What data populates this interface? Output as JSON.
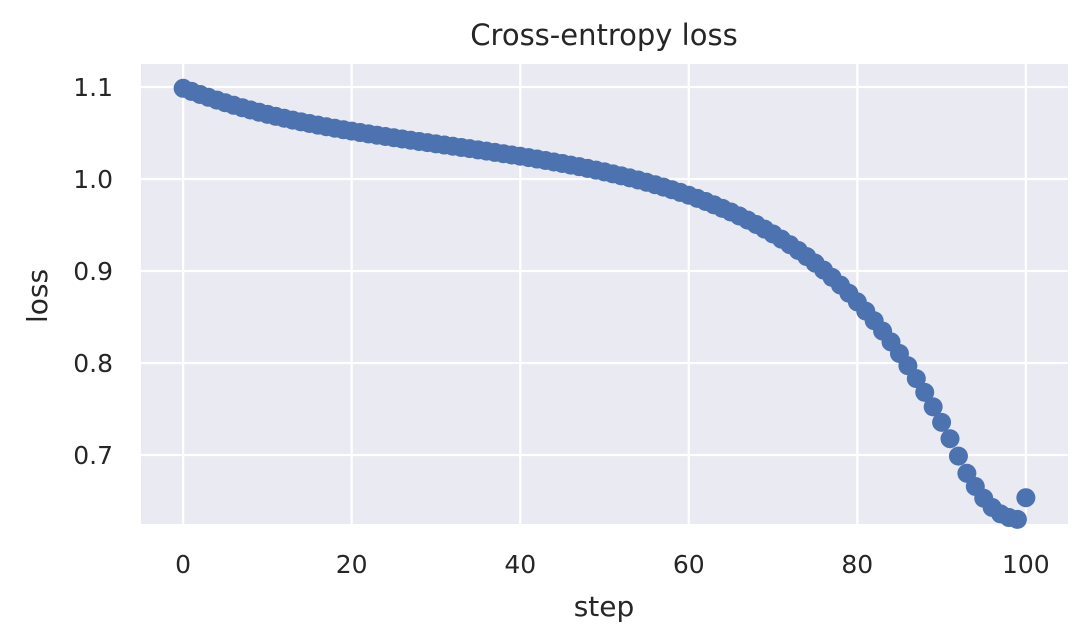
{
  "chart_data": {
    "type": "scatter",
    "title": "Cross-entropy loss",
    "xlabel": "step",
    "ylabel": "loss",
    "xlim": [
      -5,
      105
    ],
    "ylim": [
      0.625,
      1.125
    ],
    "xticks": [
      0,
      20,
      40,
      60,
      80,
      100
    ],
    "yticks": [
      0.7,
      0.8,
      0.9,
      1.0,
      1.1
    ],
    "xtick_labels": [
      "0",
      "20",
      "40",
      "60",
      "80",
      "100"
    ],
    "ytick_labels": [
      "0.7",
      "0.8",
      "0.9",
      "1.0",
      "1.1"
    ],
    "grid": true,
    "colors": {
      "background": "#eaeaf2",
      "grid": "#ffffff",
      "marker": "#4c72b0",
      "text": "#262626"
    },
    "series": [
      {
        "x": [
          0,
          1,
          2,
          3,
          4,
          5,
          6,
          7,
          8,
          9,
          10,
          11,
          12,
          13,
          14,
          15,
          16,
          17,
          18,
          19,
          20,
          21,
          22,
          23,
          24,
          25,
          26,
          27,
          28,
          29,
          30,
          31,
          32,
          33,
          34,
          35,
          36,
          37,
          38,
          39,
          40,
          41,
          42,
          43,
          44,
          45,
          46,
          47,
          48,
          49,
          50,
          51,
          52,
          53,
          54,
          55,
          56,
          57,
          58,
          59,
          60,
          61,
          62,
          63,
          64,
          65,
          66,
          67,
          68,
          69,
          70,
          71,
          72,
          73,
          74,
          75,
          76,
          77,
          78,
          79,
          80,
          81,
          82,
          83,
          84,
          85,
          86,
          87,
          88,
          89,
          90,
          91,
          92,
          93,
          94,
          95,
          96,
          97,
          98,
          99,
          100
        ],
        "values": [
          1.0986,
          1.0952,
          1.0919,
          1.0888,
          1.0858,
          1.0829,
          1.0801,
          1.0775,
          1.075,
          1.0726,
          1.0703,
          1.0681,
          1.066,
          1.064,
          1.0621,
          1.0603,
          1.0585,
          1.0568,
          1.0552,
          1.0536,
          1.052,
          1.0505,
          1.049,
          1.0476,
          1.0462,
          1.0448,
          1.0435,
          1.0421,
          1.0408,
          1.0395,
          1.0382,
          1.0369,
          1.0356,
          1.0343,
          1.033,
          1.0316,
          1.0303,
          1.0289,
          1.0275,
          1.0261,
          1.0247,
          1.0232,
          1.0217,
          1.0201,
          1.0185,
          1.0169,
          1.0151,
          1.0134,
          1.0115,
          1.0096,
          1.0077,
          1.0056,
          1.0034,
          1.0012,
          0.9989,
          0.9964,
          0.9938,
          0.9912,
          0.9883,
          0.9854,
          0.9823,
          0.979,
          0.9756,
          0.9719,
          0.9681,
          0.9641,
          0.9598,
          0.9553,
          0.9506,
          0.9455,
          0.9402,
          0.9346,
          0.9286,
          0.9223,
          0.9156,
          0.9085,
          0.901,
          0.8931,
          0.8847,
          0.8758,
          0.8664,
          0.8564,
          0.8459,
          0.8347,
          0.8229,
          0.8103,
          0.797,
          0.783,
          0.7681,
          0.7523,
          0.7355,
          0.7177,
          0.6988,
          0.6801,
          0.6658,
          0.653,
          0.643,
          0.636,
          0.632,
          0.63,
          0.6536
        ]
      }
    ]
  }
}
